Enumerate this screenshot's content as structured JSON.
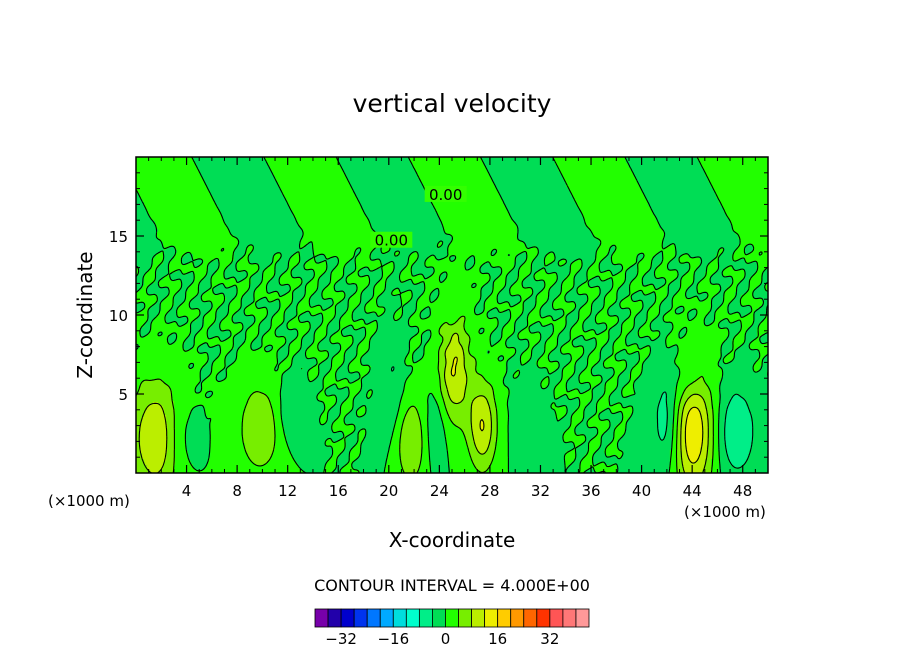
{
  "chart_data": {
    "type": "heatmap",
    "title": "vertical velocity",
    "xlabel": "X-coordinate",
    "ylabel": "Z-coordinate",
    "xunit_left": "(×1000 m)",
    "xunit_right": "(×1000 m)",
    "xlim": [
      0,
      50
    ],
    "ylim": [
      0,
      20
    ],
    "xticks": [
      4,
      8,
      12,
      16,
      20,
      24,
      28,
      32,
      36,
      40,
      44,
      48
    ],
    "yticks": [
      5,
      10,
      15
    ],
    "contour_labels": [
      {
        "text": "0.00",
        "x": 24.5,
        "y": 17.6
      },
      {
        "text": "0.00",
        "x": 20.2,
        "y": 14.7
      }
    ],
    "contour_interval_text": "CONTOUR INTERVAL = 4.000E+00",
    "colorbar": {
      "colors": [
        "#7700aa",
        "#2200aa",
        "#0000cc",
        "#0033ee",
        "#0077ff",
        "#00aaff",
        "#00dddd",
        "#00ffcc",
        "#00ee88",
        "#00dd55",
        "#22ff00",
        "#77ee00",
        "#bbee00",
        "#eeee00",
        "#ffcc00",
        "#ff9900",
        "#ff6600",
        "#ff3300",
        "#ff5555",
        "#ff7777",
        "#ff9999"
      ],
      "tick_labels": [
        {
          "text": "−32",
          "value": -32
        },
        {
          "text": "−16",
          "value": -16
        },
        {
          "text": "0",
          "value": 0
        },
        {
          "text": "16",
          "value": 16
        },
        {
          "text": "32",
          "value": 32
        }
      ],
      "range": [
        -40,
        44
      ]
    },
    "features": [
      {
        "x": 1.6,
        "z": 2.2,
        "value": 12,
        "sx": 1.5,
        "sz": 2.6
      },
      {
        "x": 9.8,
        "z": 2.8,
        "value": 8,
        "sx": 1.2,
        "sz": 2.0
      },
      {
        "x": 3.5,
        "z": 2.2,
        "value": -4,
        "sx": 1.0,
        "sz": 1.8
      },
      {
        "x": 12.2,
        "z": 3.8,
        "value": -4,
        "sx": 0.8,
        "sz": 1.4
      },
      {
        "x": 21.7,
        "z": 2.0,
        "value": 8,
        "sx": 0.9,
        "sz": 2.0
      },
      {
        "x": 20.3,
        "z": 5.2,
        "value": -4,
        "sx": 0.7,
        "sz": 2.6
      },
      {
        "x": 25.2,
        "z": 6.5,
        "value": 12,
        "sx": 0.9,
        "sz": 2.3
      },
      {
        "x": 27.4,
        "z": 3.0,
        "value": 12,
        "sx": 0.8,
        "sz": 2.0
      },
      {
        "x": 23.7,
        "z": 2.8,
        "value": -4,
        "sx": 0.6,
        "sz": 1.8
      },
      {
        "x": 30.8,
        "z": 3.2,
        "value": -2,
        "sx": 0.8,
        "sz": 2.0
      },
      {
        "x": 42.1,
        "z": 3.2,
        "value": -8,
        "sx": 0.9,
        "sz": 2.4
      },
      {
        "x": 44.0,
        "z": 2.6,
        "value": 16,
        "sx": 1.2,
        "sz": 2.8
      },
      {
        "x": 47.5,
        "z": 2.6,
        "value": -8,
        "sx": 1.1,
        "sz": 2.0
      },
      {
        "x": 43.8,
        "z": 5.8,
        "value": -4,
        "sx": 0.9,
        "sz": 1.0
      }
    ]
  }
}
